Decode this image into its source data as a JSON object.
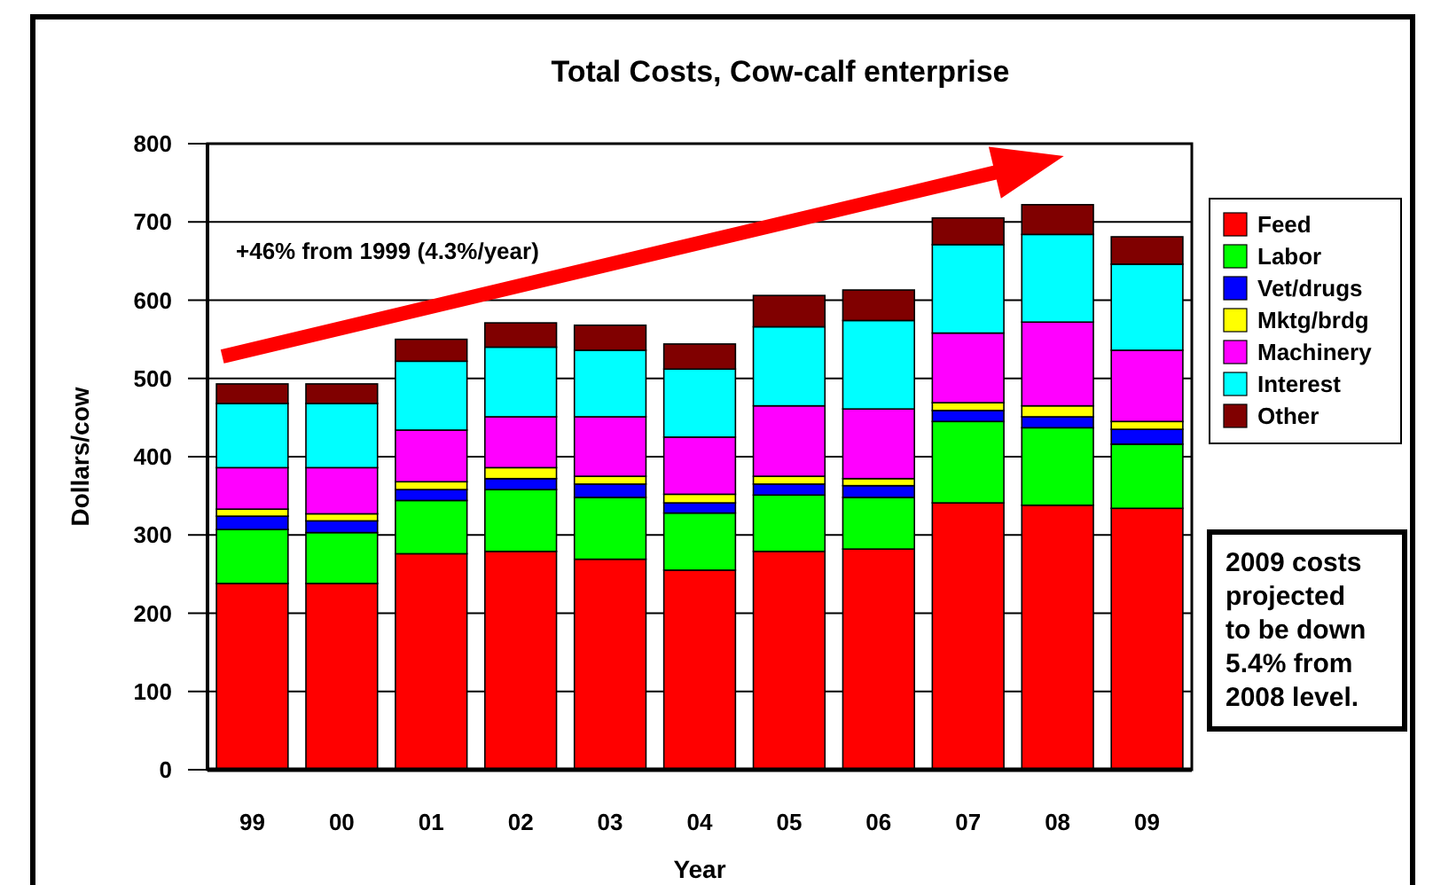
{
  "chart_data": {
    "type": "bar",
    "title": "Total Costs, Cow-calf enterprise",
    "xlabel": "Year",
    "ylabel": "Dollars/cow",
    "categories": [
      "99",
      "00",
      "01",
      "02",
      "03",
      "04",
      "05",
      "06",
      "07",
      "08",
      "09"
    ],
    "stacked": true,
    "series": [
      {
        "name": "Feed",
        "color": "#ff0000",
        "values": [
          238,
          238,
          276,
          279,
          269,
          255,
          279,
          282,
          341,
          338,
          334
        ]
      },
      {
        "name": "Labor",
        "color": "#00ff00",
        "values": [
          69,
          65,
          68,
          79,
          79,
          73,
          72,
          66,
          104,
          99,
          82
        ]
      },
      {
        "name": "Vet/drugs",
        "color": "#0000ff",
        "values": [
          17,
          15,
          14,
          14,
          17,
          13,
          14,
          15,
          14,
          14,
          19
        ]
      },
      {
        "name": "Mktg/brdg",
        "color": "#ffff00",
        "values": [
          9,
          9,
          10,
          14,
          10,
          11,
          10,
          9,
          10,
          14,
          10
        ]
      },
      {
        "name": "Machinery",
        "color": "#ff00ff",
        "values": [
          53,
          59,
          66,
          65,
          76,
          73,
          90,
          89,
          89,
          107,
          91
        ]
      },
      {
        "name": "Interest",
        "color": "#00ffff",
        "values": [
          82,
          82,
          88,
          89,
          85,
          87,
          101,
          113,
          113,
          112,
          110
        ]
      },
      {
        "name": "Other",
        "color": "#800000",
        "values": [
          25,
          25,
          28,
          31,
          32,
          32,
          40,
          39,
          34,
          38,
          35
        ]
      }
    ],
    "ylim": [
      0,
      800
    ],
    "yticks": [
      0,
      100,
      200,
      300,
      400,
      500,
      600,
      700,
      800
    ],
    "grid": "y",
    "legend": "right",
    "annotations": [
      "+46% from 1999 (4.3%/year)",
      "2009 costs projected to be down 5.4% from 2008 level."
    ]
  }
}
